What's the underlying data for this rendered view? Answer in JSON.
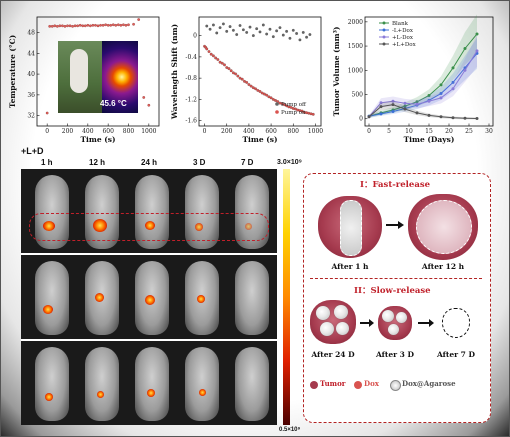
{
  "chart_data": [
    {
      "type": "scatter",
      "ylabel": "Temperature (°C)",
      "xlabel": "Time (s)",
      "xlim": [
        -100,
        1100
      ],
      "ylim": [
        30,
        51
      ],
      "yticks": [
        32,
        36,
        40,
        44,
        48
      ],
      "xticks": [
        0,
        200,
        400,
        600,
        800,
        1000
      ],
      "inset_label": "45.6 °C",
      "series": [
        {
          "x": [
            0,
            25,
            50,
            75,
            100,
            125,
            150,
            175,
            200,
            225,
            250,
            275,
            300,
            325,
            350,
            375,
            400,
            425,
            450,
            475,
            500,
            525,
            550,
            575,
            600,
            625,
            650,
            675,
            700,
            725,
            750,
            775,
            800,
            850,
            900,
            950,
            1000
          ],
          "y": [
            32.5,
            49.2,
            49.2,
            49.3,
            49.2,
            49.3,
            49.3,
            49.2,
            49.3,
            49.3,
            49.2,
            49.3,
            49.3,
            49.4,
            49.3,
            49.3,
            49.4,
            49.3,
            49.4,
            49.4,
            49.3,
            49.4,
            49.4,
            49.5,
            49.4,
            49.4,
            49.5,
            49.4,
            49.5,
            49.4,
            49.5,
            49.4,
            49.5,
            49.6,
            50.5,
            35.5,
            34.0
          ],
          "color": "#e0605a"
        }
      ]
    },
    {
      "type": "scatter",
      "ylabel": "Wavelength Shift (nm)",
      "xlabel": "Time (s)",
      "xlim": [
        -50,
        1050
      ],
      "ylim": [
        -1.7,
        0.35
      ],
      "yticks": [
        0.0,
        -0.4,
        -0.8,
        -1.2,
        -1.6
      ],
      "xticks": [
        0,
        200,
        400,
        600,
        800,
        1000
      ],
      "legend_position": "bottom-right",
      "series": [
        {
          "name": "Pump off",
          "color": "#666666",
          "x": [
            20,
            50,
            80,
            110,
            140,
            170,
            200,
            230,
            260,
            290,
            320,
            350,
            380,
            410,
            440,
            470,
            500,
            530,
            560,
            590,
            620,
            650,
            680,
            710,
            740,
            770,
            800,
            830,
            860,
            890,
            920,
            950
          ],
          "y": [
            0.18,
            0.12,
            0.2,
            0.05,
            0.15,
            0.22,
            0.08,
            0.17,
            0.1,
            0.02,
            0.19,
            0.11,
            0.06,
            0.16,
            0.0,
            0.13,
            0.07,
            0.2,
            0.03,
            0.12,
            -0.02,
            0.09,
            0.15,
            0.01,
            0.08,
            -0.05,
            0.1,
            0.04,
            -0.08,
            0.06,
            -0.03,
            0.02
          ]
        },
        {
          "name": "Pump on",
          "color": "#d9534f",
          "x": [
            0,
            10,
            20,
            40,
            60,
            80,
            100,
            120,
            140,
            160,
            180,
            200,
            220,
            240,
            260,
            280,
            300,
            320,
            340,
            360,
            380,
            400,
            420,
            440,
            460,
            480,
            500,
            520,
            540,
            560,
            580,
            600,
            620,
            640,
            660,
            680,
            700,
            720,
            740,
            760,
            780,
            800,
            820,
            840,
            860,
            880,
            900,
            920,
            940,
            960,
            980
          ],
          "y": [
            -0.2,
            -0.22,
            -0.25,
            -0.3,
            -0.35,
            -0.38,
            -0.42,
            -0.45,
            -0.5,
            -0.52,
            -0.55,
            -0.6,
            -0.62,
            -0.66,
            -0.7,
            -0.72,
            -0.76,
            -0.8,
            -0.82,
            -0.86,
            -0.88,
            -0.92,
            -0.95,
            -0.98,
            -1.0,
            -1.03,
            -1.05,
            -1.08,
            -1.1,
            -1.12,
            -1.15,
            -1.17,
            -1.2,
            -1.22,
            -1.24,
            -1.27,
            -1.28,
            -1.3,
            -1.32,
            -1.34,
            -1.35,
            -1.37,
            -1.38,
            -1.4,
            -1.41,
            -1.42,
            -1.44,
            -1.45,
            -1.46,
            -1.47,
            -1.48
          ]
        }
      ]
    },
    {
      "type": "line",
      "ylabel": "Tumor Volume (mm³)",
      "xlabel": "Time (Days)",
      "xlim": [
        -1,
        31
      ],
      "ylim": [
        -150,
        2100
      ],
      "yticks": [
        0,
        500,
        1000,
        1500,
        2000
      ],
      "xticks": [
        0,
        5,
        10,
        15,
        20,
        25,
        30
      ],
      "legend_position": "top-right",
      "series": [
        {
          "name": "Blank",
          "color": "#3a8f4a",
          "x": [
            0,
            3,
            6,
            9,
            12,
            15,
            18,
            21,
            24,
            27
          ],
          "y": [
            50,
            120,
            180,
            260,
            350,
            480,
            700,
            1050,
            1450,
            1750
          ]
        },
        {
          "name": "-L+Dox",
          "color": "#3b6fd6",
          "x": [
            0,
            3,
            6,
            9,
            12,
            15,
            18,
            21,
            24,
            27
          ],
          "y": [
            50,
            100,
            150,
            210,
            280,
            380,
            520,
            750,
            1050,
            1350
          ]
        },
        {
          "name": "+L-Dox",
          "color": "#8a7bd8",
          "x": [
            0,
            3,
            6,
            9,
            12,
            15,
            18,
            21,
            24,
            27
          ],
          "y": [
            40,
            330,
            360,
            320,
            300,
            360,
            430,
            620,
            1000,
            1400
          ]
        },
        {
          "name": "+L+Dox",
          "color": "#555555",
          "x": [
            0,
            3,
            6,
            9,
            12,
            15,
            18,
            21,
            24,
            27
          ],
          "y": [
            40,
            250,
            290,
            200,
            120,
            70,
            40,
            20,
            10,
            5
          ]
        }
      ]
    }
  ],
  "imaging": {
    "group_label": "+L+D",
    "time_labels": [
      "1 h",
      "12 h",
      "24 h",
      "3 D",
      "7 D"
    ],
    "colorbar_max": "3.0×10⁹",
    "colorbar_min": "0.5×10⁹"
  },
  "schematic": {
    "fast_title": "I：Fast-release",
    "slow_title": "II：Slow-release",
    "captions_top": [
      "After 1 h",
      "After 12 h"
    ],
    "captions_bottom": [
      "After 24 D",
      "After 3 D",
      "After 7 D"
    ],
    "legend": [
      "Tumor",
      "Dox",
      "Dox@Agarose"
    ],
    "colors": {
      "tumor": "#a53a4e",
      "dox": "#d9534f",
      "accent": "#c0202a"
    }
  }
}
